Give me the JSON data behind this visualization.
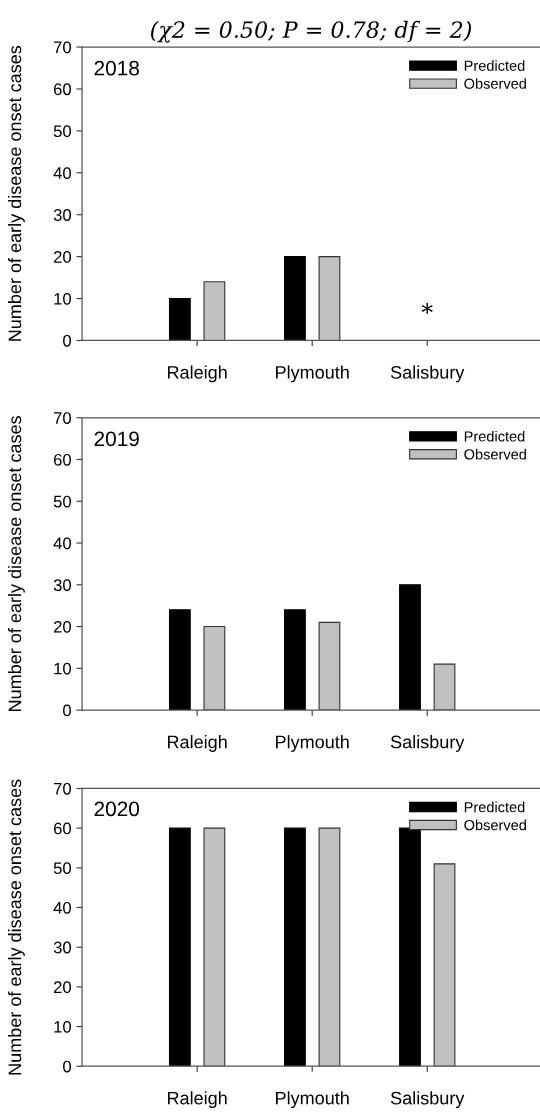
{
  "chart_data": [
    {
      "type": "bar",
      "title": "2018",
      "ylabel": "Number of early disease onset cases",
      "categories": [
        "Raleigh",
        "Plymouth",
        "Salisbury"
      ],
      "series": [
        {
          "name": "Predicted",
          "color": "#000000",
          "values": [
            10,
            20,
            null
          ]
        },
        {
          "name": "Observed",
          "color": "#c0c0c0",
          "values": [
            14,
            20,
            null
          ]
        }
      ],
      "ylim": [
        0,
        70
      ],
      "yticks": [
        0,
        10,
        20,
        30,
        40,
        50,
        60,
        70
      ],
      "legend": "top right",
      "annotations": [
        "(χ2 = 0.50; P = 0.78; df = 2)",
        "*"
      ]
    },
    {
      "type": "bar",
      "title": "2019",
      "ylabel": "Number of early disease onset cases",
      "categories": [
        "Raleigh",
        "Plymouth",
        "Salisbury"
      ],
      "series": [
        {
          "name": "Predicted",
          "color": "#000000",
          "values": [
            24,
            24,
            30
          ]
        },
        {
          "name": "Observed",
          "color": "#c0c0c0",
          "values": [
            20,
            21,
            11
          ]
        }
      ],
      "ylim": [
        0,
        70
      ],
      "yticks": [
        0,
        10,
        20,
        30,
        40,
        50,
        60,
        70
      ],
      "legend": "top right"
    },
    {
      "type": "bar",
      "title": "2020",
      "ylabel": "Number of early disease onset cases",
      "categories": [
        "Raleigh",
        "Plymouth",
        "Salisbury"
      ],
      "series": [
        {
          "name": "Predicted",
          "color": "#000000",
          "values": [
            60,
            60,
            60
          ]
        },
        {
          "name": "Observed",
          "color": "#c0c0c0",
          "values": [
            60,
            60,
            51
          ]
        }
      ],
      "ylim": [
        0,
        70
      ],
      "yticks": [
        0,
        10,
        20,
        30,
        40,
        50,
        60,
        70
      ],
      "legend": "top right"
    }
  ]
}
